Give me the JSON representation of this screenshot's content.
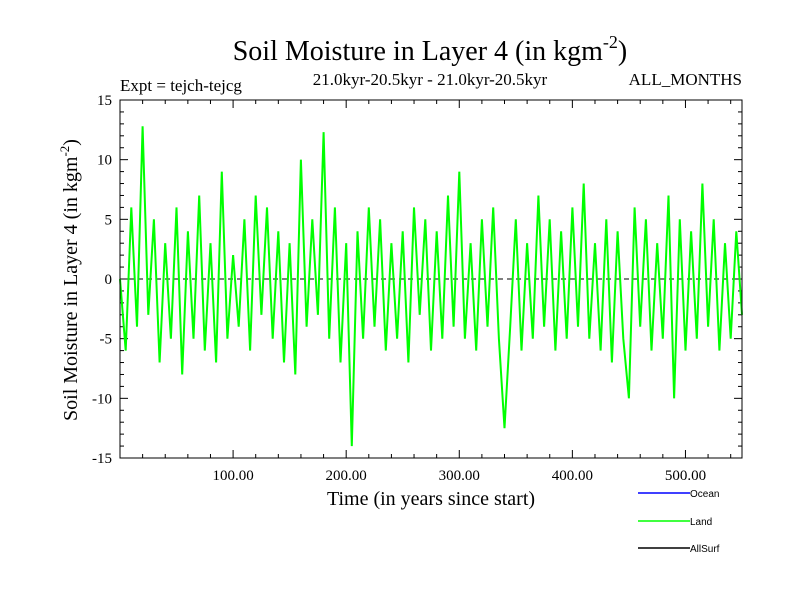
{
  "header": {
    "title": "Soil Moisture in Layer 4 (in kgm",
    "title_sup": "-2",
    "title_close": ")",
    "expt": "Expt = tejch-tejcg",
    "period": "21.0kyr-20.5kyr - 21.0kyr-20.5kyr",
    "months": "ALL_MONTHS"
  },
  "chart_data": {
    "type": "line",
    "title": "Soil Moisture in Layer 4 (in kgm-2)",
    "xlabel": "Time (in years since start)",
    "ylabel": "Soil Moisture in Layer 4 (in kgm-2)",
    "ylabel_text": "Soil Moisture in Layer 4 (in kgm",
    "ylabel_sup": "-2",
    "ylabel_close": ")",
    "xlim": [
      0,
      550
    ],
    "ylim": [
      -15,
      15
    ],
    "x_ticks": [
      100,
      200,
      300,
      400,
      500
    ],
    "x_tick_labels": [
      "100.00",
      "200.00",
      "300.00",
      "400.00",
      "500.00"
    ],
    "y_ticks": [
      -15,
      -10,
      -5,
      0,
      5,
      10,
      15
    ],
    "y_tick_labels": [
      "-15",
      "-10",
      "-5",
      "0",
      "5",
      "10",
      "15"
    ],
    "zero_line": "dashed",
    "legend_position": "bottom-right",
    "series": [
      {
        "name": "Ocean",
        "color": "#0000ff",
        "x": [],
        "values": []
      },
      {
        "name": "Land",
        "color": "#00ff00",
        "x": [
          0,
          5,
          10,
          15,
          20,
          25,
          30,
          35,
          40,
          45,
          50,
          55,
          60,
          65,
          70,
          75,
          80,
          85,
          90,
          95,
          100,
          105,
          110,
          115,
          120,
          125,
          130,
          135,
          140,
          145,
          150,
          155,
          160,
          165,
          170,
          175,
          180,
          185,
          190,
          195,
          200,
          205,
          210,
          215,
          220,
          225,
          230,
          235,
          240,
          245,
          250,
          255,
          260,
          265,
          270,
          275,
          280,
          285,
          290,
          295,
          300,
          305,
          310,
          315,
          320,
          325,
          330,
          335,
          340,
          345,
          350,
          355,
          360,
          365,
          370,
          375,
          380,
          385,
          390,
          395,
          400,
          405,
          410,
          415,
          420,
          425,
          430,
          435,
          440,
          445,
          450,
          455,
          460,
          465,
          470,
          475,
          480,
          485,
          490,
          495,
          500,
          505,
          510,
          515,
          520,
          525,
          530,
          535,
          540,
          545,
          550
        ],
        "values": [
          0,
          -6,
          6,
          -4,
          12.8,
          -3,
          5,
          -7,
          3,
          -5,
          6,
          -8,
          4,
          -5,
          7,
          -6,
          3,
          -7,
          9,
          -5,
          2,
          -4,
          5,
          -6,
          7,
          -3,
          6,
          -5,
          4,
          -7,
          3,
          -8,
          10,
          -4,
          5,
          -3,
          12.3,
          -5,
          6,
          -7,
          3,
          -14,
          4,
          -5,
          6,
          -4,
          5,
          -6,
          3,
          -5,
          4,
          -7,
          6,
          -3,
          5,
          -6,
          4,
          -5,
          7,
          -4,
          9,
          -5,
          3,
          -6,
          5,
          -4,
          6,
          -5,
          -12.5,
          -4,
          5,
          -6,
          3,
          -5,
          7,
          -4,
          5,
          -6,
          4,
          -5,
          6,
          -4,
          8,
          -5,
          3,
          -6,
          5,
          -7,
          4,
          -5,
          -10,
          6,
          -4,
          5,
          -6,
          3,
          -5,
          7,
          -10,
          5,
          -6,
          4,
          -5,
          8,
          -4,
          5,
          -6,
          3,
          -5,
          4,
          -3
        ]
      },
      {
        "name": "AllSurf",
        "color": "#000000",
        "x": [],
        "values": []
      }
    ]
  }
}
